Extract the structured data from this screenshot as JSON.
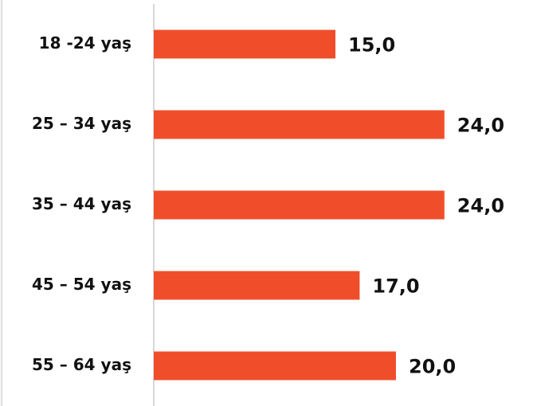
{
  "chart_data": {
    "type": "bar",
    "orientation": "horizontal",
    "categories": [
      "18 -24 yaş",
      "25 – 34 yaş",
      "35 – 44 yaş",
      "45 – 54 yaş",
      "55 – 64 yaş"
    ],
    "values": [
      15,
      24,
      24,
      17,
      20
    ],
    "value_labels": [
      "15,0",
      "24,0",
      "24,0",
      "17,0",
      "20,0"
    ],
    "color": "#f04e2b"
  }
}
